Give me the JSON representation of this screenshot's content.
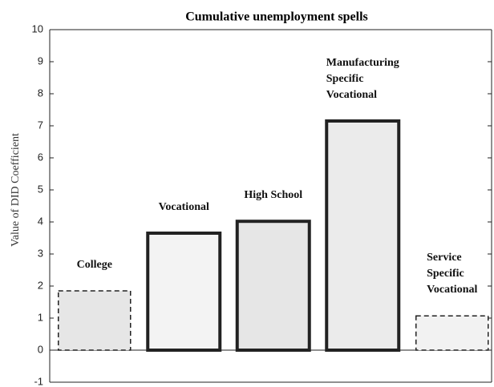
{
  "chart_data": {
    "type": "bar",
    "title": "Cumulative unemployment spells",
    "ylabel": "Value of DID Coefficient",
    "categories": [
      "College",
      "Vocational",
      "High School",
      "Manufacturing\nSpecific\nVocational",
      "Service\nSpecific\nVocational"
    ],
    "values": [
      1.85,
      3.65,
      4.02,
      7.15,
      1.07
    ],
    "colors": [
      "#e6e6e6",
      "#f3f3f3",
      "#e6e6e6",
      "#ebebeb",
      "#f2f2f2"
    ],
    "dashed": [
      true,
      false,
      false,
      false,
      true
    ],
    "ylim": [
      -1,
      10
    ],
    "yticks": [
      -1,
      0,
      1,
      2,
      3,
      4,
      5,
      6,
      7,
      8,
      9,
      10
    ],
    "grid": false
  }
}
